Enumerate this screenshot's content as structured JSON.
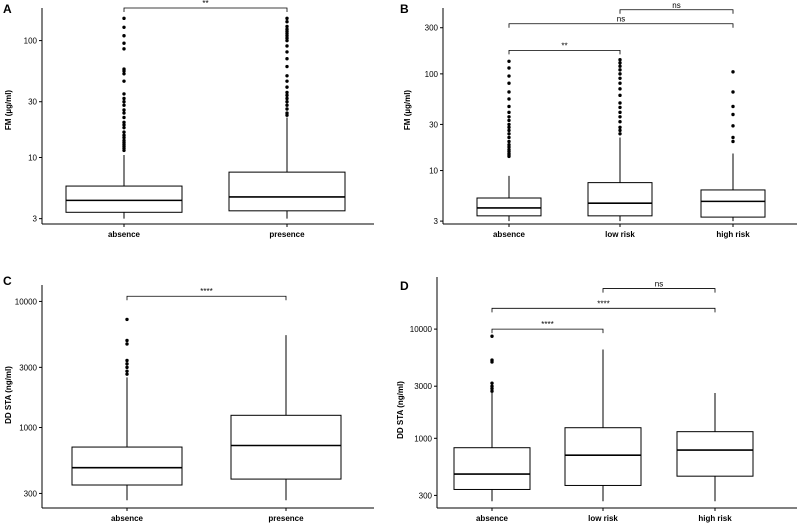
{
  "chart_data": [
    {
      "panel": "A",
      "type": "box",
      "ylabel": "FM (µg/ml)",
      "scale": "log",
      "ylim": [
        2.7,
        190
      ],
      "yticks": [
        3,
        10,
        30,
        100
      ],
      "categories": [
        "absence",
        "presence"
      ],
      "boxes": [
        {
          "q1": 3.4,
          "median": 4.3,
          "q3": 5.7,
          "whislo": 3.0,
          "whishi": 10.5,
          "outliers": [
            11.5,
            12,
            12.5,
            13,
            13.5,
            14,
            14.8,
            15.5,
            16.5,
            18,
            19,
            20,
            22,
            24,
            25.5,
            28,
            30,
            32,
            35,
            45,
            52,
            55,
            57,
            85,
            95,
            110,
            130,
            155
          ]
        },
        {
          "q1": 3.5,
          "median": 4.6,
          "q3": 7.5,
          "whislo": 3.0,
          "whishi": 22,
          "outliers": [
            23,
            24,
            26,
            28,
            30,
            32,
            34,
            36,
            40,
            45,
            50,
            60,
            70,
            80,
            90,
            100,
            105,
            110,
            115,
            120,
            125,
            132,
            145,
            155
          ]
        }
      ],
      "comparisons": [
        {
          "from": 0,
          "to": 1,
          "label": "**",
          "y": 190
        }
      ]
    },
    {
      "panel": "B",
      "type": "box",
      "ylabel": "FM (µg/ml)",
      "scale": "log",
      "ylim": [
        2.8,
        480
      ],
      "yticks": [
        3,
        10,
        30,
        100,
        300
      ],
      "categories": [
        "absence",
        "low risk",
        "high risk"
      ],
      "boxes": [
        {
          "q1": 3.4,
          "median": 4.1,
          "q3": 5.2,
          "whislo": 3.0,
          "whishi": 8.8,
          "outliers": [
            14,
            14.5,
            15,
            15.8,
            16.5,
            17.5,
            18.5,
            20,
            22,
            24,
            26,
            28,
            30,
            33,
            36,
            40,
            46,
            55,
            65,
            80,
            95,
            115,
            135
          ]
        },
        {
          "q1": 3.4,
          "median": 4.6,
          "q3": 7.5,
          "whislo": 3.0,
          "whishi": 22,
          "outliers": [
            24,
            26,
            28,
            32,
            36,
            40,
            45,
            50,
            60,
            70,
            80,
            90,
            100,
            110,
            120,
            130,
            140
          ]
        },
        {
          "q1": 3.3,
          "median": 4.8,
          "q3": 6.3,
          "whislo": 3.0,
          "whishi": 15,
          "outliers": [
            20,
            22,
            29,
            38,
            46,
            65,
            105
          ]
        }
      ],
      "comparisons": [
        {
          "from": 0,
          "to": 1,
          "label": "**",
          "y": 175
        },
        {
          "from": 0,
          "to": 2,
          "label": "ns",
          "y": 330
        },
        {
          "from": 1,
          "to": 2,
          "label": "ns",
          "y": 460
        }
      ]
    },
    {
      "panel": "C",
      "type": "box",
      "ylabel": "DD STA (ng/ml)",
      "scale": "log",
      "ylim": [
        230,
        13500
      ],
      "yticks": [
        300,
        1000,
        3000,
        10000
      ],
      "categories": [
        "absence",
        "presence"
      ],
      "boxes": [
        {
          "q1": 350,
          "median": 480,
          "q3": 700,
          "whislo": 265,
          "whishi": 2500,
          "outliers": [
            2650,
            2800,
            3000,
            3200,
            3400,
            4600,
            4900,
            7200
          ]
        },
        {
          "q1": 390,
          "median": 720,
          "q3": 1250,
          "whislo": 265,
          "whishi": 5400,
          "outliers": []
        }
      ],
      "comparisons": [
        {
          "from": 0,
          "to": 1,
          "label": "****",
          "y": 11000
        }
      ]
    },
    {
      "panel": "D",
      "type": "box",
      "ylabel": "DD STA (ng/ml)",
      "scale": "log",
      "ylim": [
        230,
        30000
      ],
      "yticks": [
        300,
        1000,
        3000,
        10000
      ],
      "categories": [
        "absence",
        "low risk",
        "high risk"
      ],
      "boxes": [
        {
          "q1": 340,
          "median": 470,
          "q3": 820,
          "whislo": 265,
          "whishi": 2600,
          "outliers": [
            2700,
            2850,
            3000,
            3200,
            5000,
            5200,
            8600
          ]
        },
        {
          "q1": 370,
          "median": 700,
          "q3": 1250,
          "whislo": 265,
          "whishi": 6500,
          "outliers": []
        },
        {
          "q1": 450,
          "median": 780,
          "q3": 1150,
          "whislo": 265,
          "whishi": 2600,
          "outliers": []
        }
      ],
      "comparisons": [
        {
          "from": 0,
          "to": 1,
          "label": "****",
          "y": 10000
        },
        {
          "from": 0,
          "to": 2,
          "label": "****",
          "y": 15500
        },
        {
          "from": 1,
          "to": 2,
          "label": "ns",
          "y": 23500
        }
      ]
    }
  ]
}
